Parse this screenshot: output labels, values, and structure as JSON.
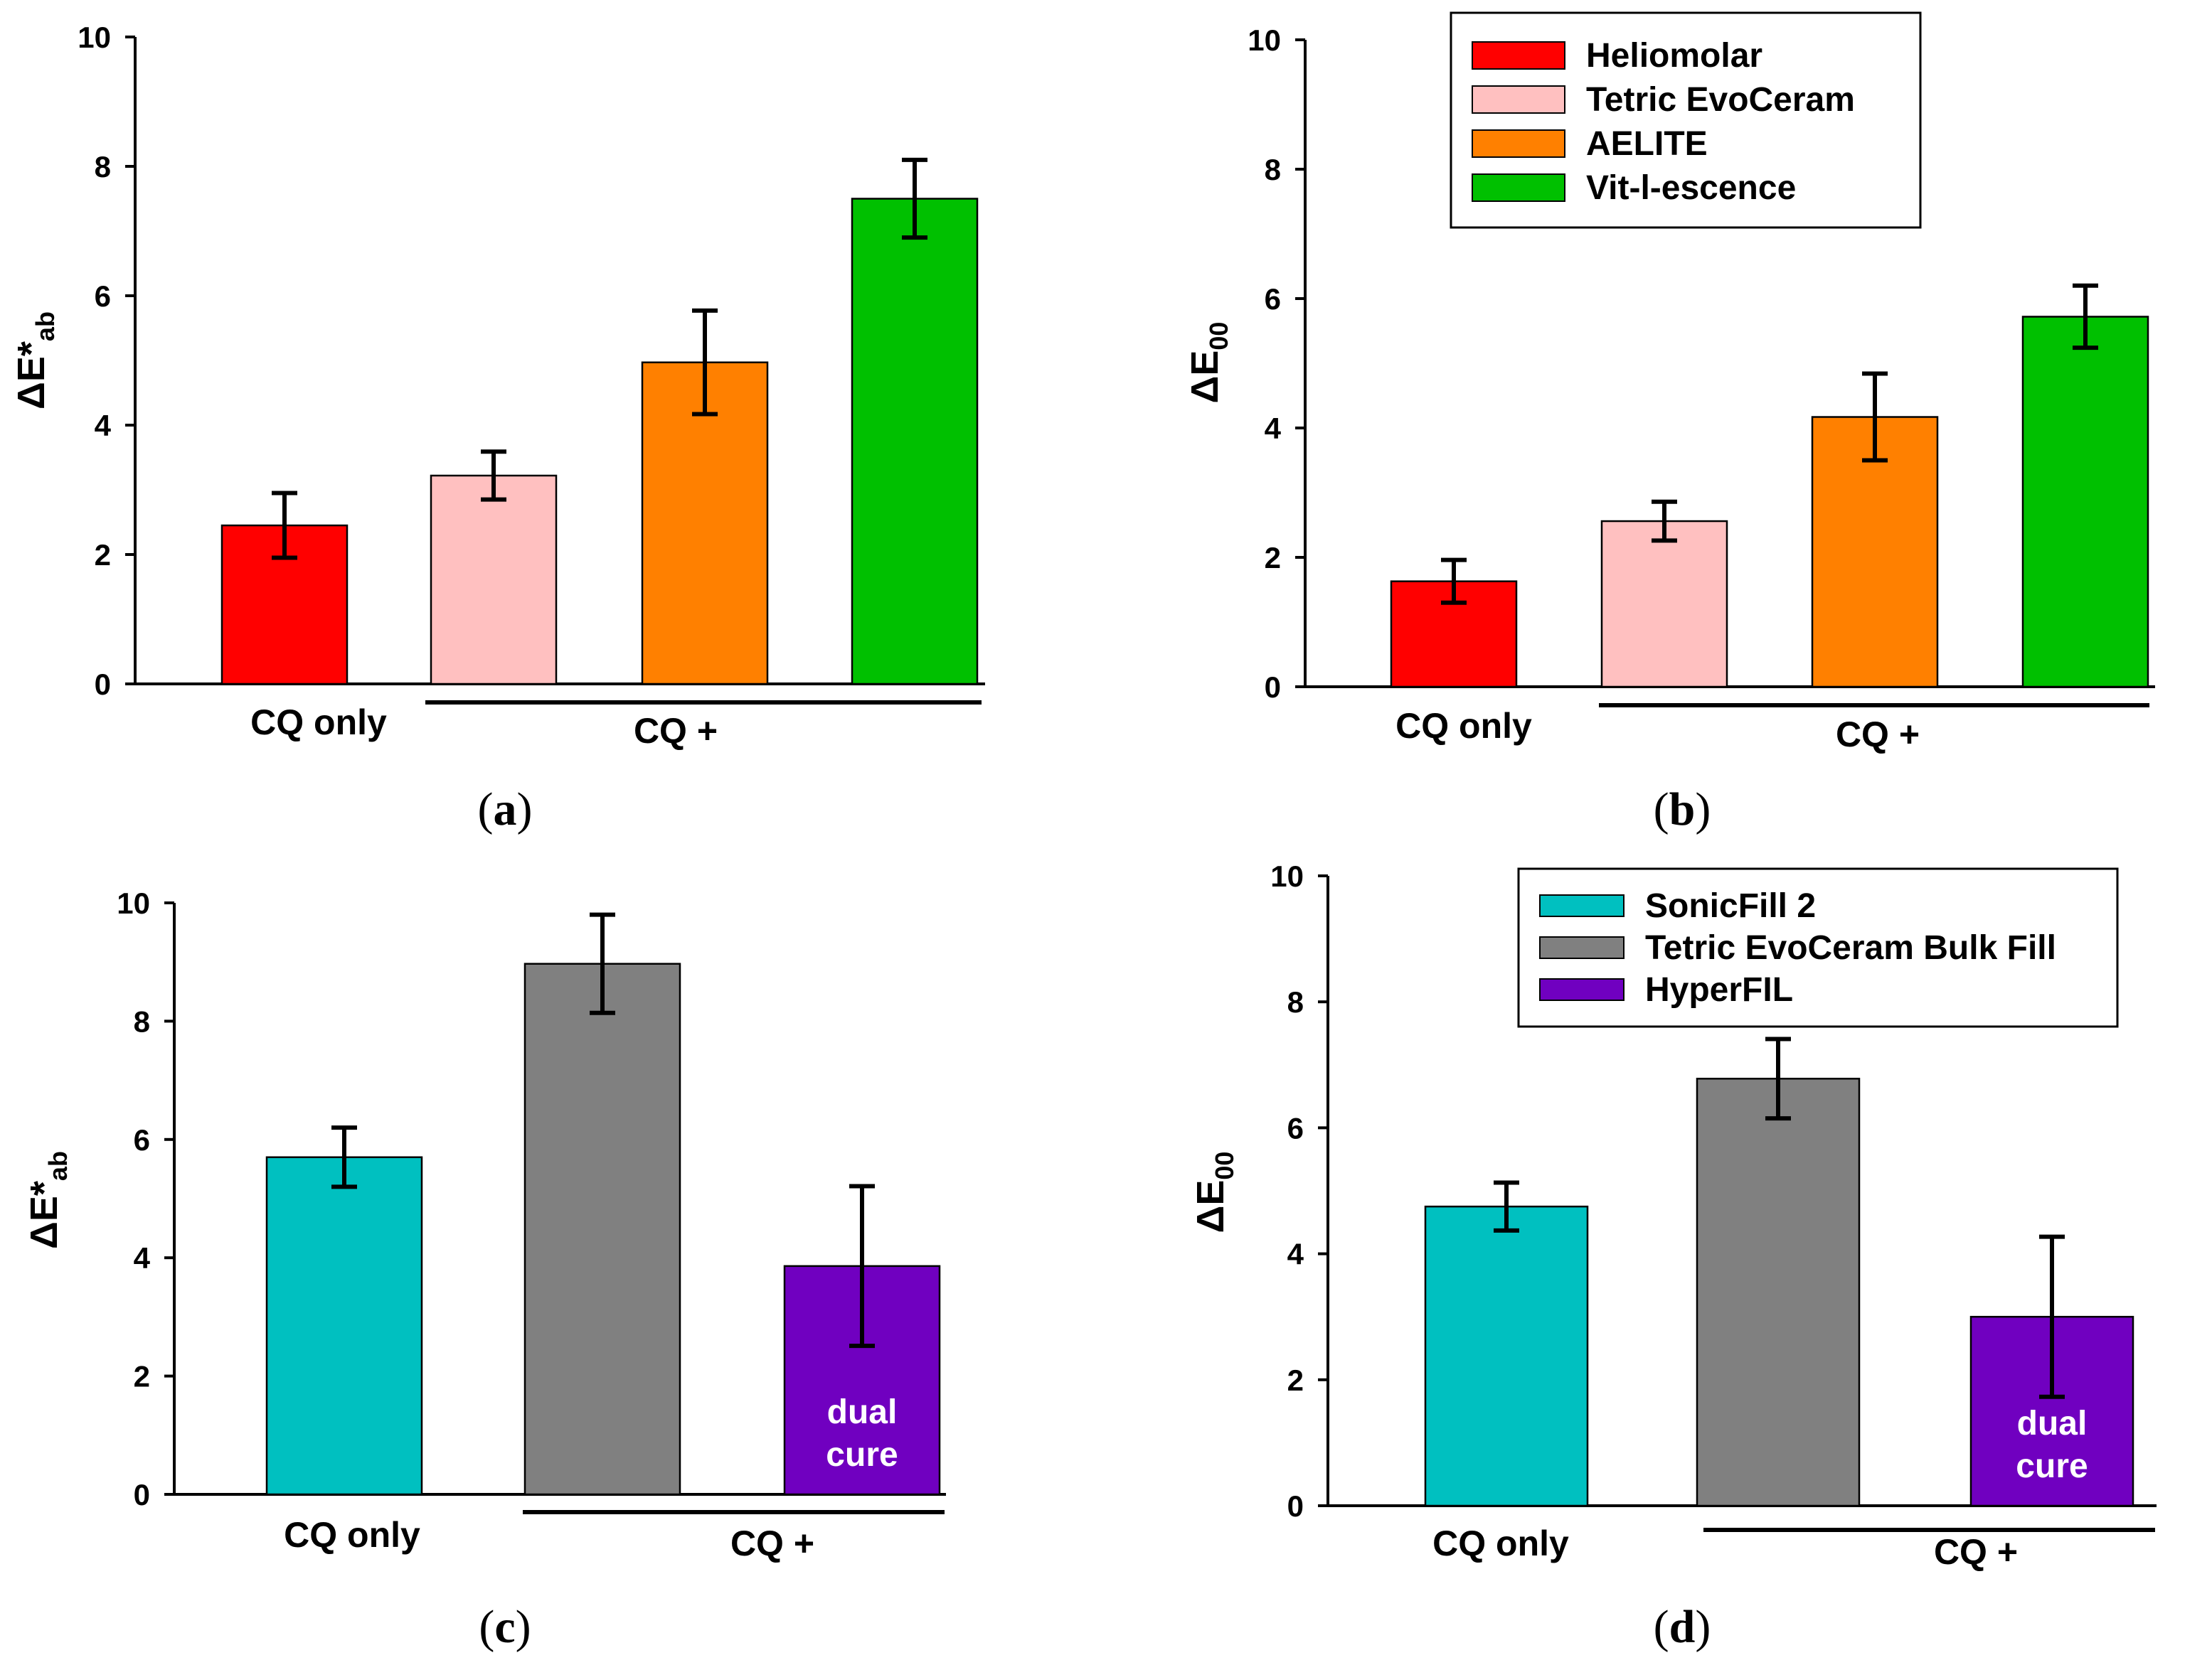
{
  "chart_data": [
    {
      "id": "a",
      "type": "bar",
      "panel_label": "a",
      "ylabel_main": "ΔE*",
      "ylabel_sub": "ab",
      "ylim": [
        0,
        10
      ],
      "yticks": [
        "0",
        "2",
        "4",
        "6",
        "8",
        "10"
      ],
      "group_labels": [
        "CQ only",
        "CQ +"
      ],
      "bars": [
        {
          "name": "Heliomolar",
          "value": 2.45,
          "error": 0.5,
          "color": "#ff0000",
          "inner_label": ""
        },
        {
          "name": "Tetric EvoCeram",
          "value": 3.22,
          "error": 0.37,
          "color": "#ffc0c0",
          "inner_label": ""
        },
        {
          "name": "AELITE",
          "value": 4.97,
          "error": 0.8,
          "color": "#ff8000",
          "inner_label": ""
        },
        {
          "name": "Vit-l-escence",
          "value": 7.5,
          "error": 0.6,
          "color": "#00c000",
          "inner_label": ""
        }
      ],
      "legend": null
    },
    {
      "id": "b",
      "type": "bar",
      "panel_label": "b",
      "ylabel_main": "ΔE",
      "ylabel_sub": "00",
      "ylim": [
        0,
        10
      ],
      "yticks": [
        "0",
        "2",
        "4",
        "6",
        "8",
        "10"
      ],
      "group_labels": [
        "CQ only",
        "CQ +"
      ],
      "bars": [
        {
          "name": "Heliomolar",
          "value": 1.63,
          "error": 0.33,
          "color": "#ff0000",
          "inner_label": ""
        },
        {
          "name": "Tetric EvoCeram",
          "value": 2.56,
          "error": 0.3,
          "color": "#ffc0c0",
          "inner_label": ""
        },
        {
          "name": "AELITE",
          "value": 4.17,
          "error": 0.67,
          "color": "#ff8000",
          "inner_label": ""
        },
        {
          "name": "Vit-l-escence",
          "value": 5.72,
          "error": 0.48,
          "color": "#00c000",
          "inner_label": ""
        }
      ],
      "legend": {
        "entries": [
          {
            "label": "Heliomolar",
            "color": "#ff0000"
          },
          {
            "label": "Tetric EvoCeram",
            "color": "#ffc0c0"
          },
          {
            "label": "AELITE",
            "color": "#ff8000"
          },
          {
            "label": "Vit-l-escence",
            "color": "#00c000"
          }
        ]
      }
    },
    {
      "id": "c",
      "type": "bar",
      "panel_label": "c",
      "ylabel_main": "ΔE*",
      "ylabel_sub": "ab",
      "ylim": [
        0,
        10
      ],
      "yticks": [
        "0",
        "2",
        "4",
        "6",
        "8",
        "10"
      ],
      "group_labels": [
        "CQ only",
        "CQ +"
      ],
      "bars": [
        {
          "name": "SonicFill 2",
          "value": 5.7,
          "error": 0.5,
          "color": "#00c0c0",
          "inner_label": ""
        },
        {
          "name": "Tetric EvoCeram Bulk Fill",
          "value": 8.97,
          "error": 0.83,
          "color": "#808080",
          "inner_label": ""
        },
        {
          "name": "HyperFIL",
          "value": 3.86,
          "error": 1.35,
          "color": "#7000c0",
          "inner_label": "dual cure"
        }
      ],
      "legend": null
    },
    {
      "id": "d",
      "type": "bar",
      "panel_label": "d",
      "ylabel_main": "ΔE",
      "ylabel_sub": "00",
      "ylim": [
        0,
        10
      ],
      "yticks": [
        "0",
        "2",
        "4",
        "6",
        "8",
        "10"
      ],
      "group_labels": [
        "CQ only",
        "CQ +"
      ],
      "bars": [
        {
          "name": "SonicFill 2",
          "value": 4.75,
          "error": 0.38,
          "color": "#00c0c0",
          "inner_label": ""
        },
        {
          "name": "Tetric EvoCeram Bulk Fill",
          "value": 6.78,
          "error": 0.63,
          "color": "#808080",
          "inner_label": ""
        },
        {
          "name": "HyperFIL",
          "value": 3.0,
          "error": 1.27,
          "color": "#7000c0",
          "inner_label": "dual cure"
        }
      ],
      "legend": {
        "entries": [
          {
            "label": "SonicFill 2",
            "color": "#00c0c0"
          },
          {
            "label": "Tetric EvoCeram Bulk Fill",
            "color": "#808080"
          },
          {
            "label": "HyperFIL",
            "color": "#7000c0"
          }
        ]
      }
    }
  ]
}
